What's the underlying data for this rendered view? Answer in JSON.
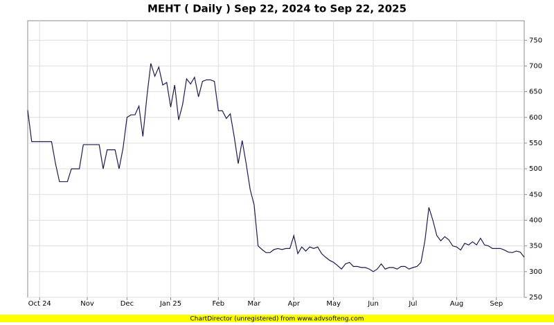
{
  "chart_data": {
    "type": "line",
    "title": "MEHT ( Daily ) Sep 22, 2024 to Sep 22, 2025",
    "footer": "ChartDirector (unregistered) from www.advsofteng.com",
    "categories": [
      null,
      null,
      null,
      "Oct 24",
      null,
      null,
      null,
      null,
      null,
      null,
      null,
      null,
      null,
      null,
      null,
      "Nov",
      null,
      null,
      null,
      null,
      null,
      null,
      null,
      null,
      null,
      "Dec",
      null,
      null,
      null,
      null,
      null,
      null,
      null,
      null,
      null,
      null,
      "Jan 25",
      null,
      null,
      null,
      null,
      null,
      null,
      null,
      null,
      null,
      null,
      null,
      "Feb",
      null,
      null,
      null,
      null,
      null,
      null,
      null,
      null,
      "Mar",
      null,
      null,
      null,
      null,
      null,
      null,
      null,
      null,
      null,
      "Apr",
      null,
      null,
      null,
      null,
      null,
      null,
      null,
      null,
      null,
      "May",
      null,
      null,
      null,
      null,
      null,
      null,
      null,
      null,
      null,
      "Jun",
      null,
      null,
      null,
      null,
      null,
      null,
      null,
      null,
      null,
      "Jul",
      null,
      null,
      null,
      null,
      null,
      null,
      null,
      null,
      null,
      null,
      "Aug",
      null,
      null,
      null,
      null,
      null,
      null,
      null,
      null,
      null,
      "Sep",
      null,
      null,
      null,
      null,
      null,
      null,
      null
    ],
    "series": [
      {
        "name": "MEHT",
        "color": "#1a1a4e",
        "values": [
          614,
          553,
          553,
          553,
          553,
          553,
          553,
          510,
          475,
          475,
          475,
          500,
          500,
          500,
          547,
          547,
          547,
          547,
          547,
          500,
          537,
          537,
          537,
          500,
          540,
          600,
          605,
          605,
          622,
          563,
          640,
          705,
          680,
          698,
          663,
          668,
          620,
          663,
          595,
          625,
          675,
          665,
          678,
          640,
          670,
          673,
          673,
          670,
          613,
          613,
          598,
          607,
          562,
          510,
          555,
          510,
          460,
          430,
          350,
          343,
          337,
          337,
          343,
          345,
          343,
          345,
          345,
          370,
          335,
          348,
          340,
          348,
          345,
          348,
          335,
          328,
          322,
          318,
          312,
          305,
          315,
          318,
          310,
          310,
          308,
          308,
          305,
          300,
          305,
          315,
          305,
          308,
          308,
          305,
          310,
          310,
          305,
          308,
          310,
          318,
          360,
          425,
          400,
          370,
          360,
          368,
          362,
          350,
          348,
          342,
          355,
          352,
          358,
          352,
          365,
          352,
          350,
          345,
          345,
          345,
          342,
          338,
          337,
          340,
          338,
          328
        ]
      }
    ],
    "ylim": [
      250,
      788
    ],
    "yticks": [
      250,
      300,
      350,
      400,
      450,
      500,
      550,
      600,
      650,
      700,
      750
    ],
    "grid": true
  }
}
